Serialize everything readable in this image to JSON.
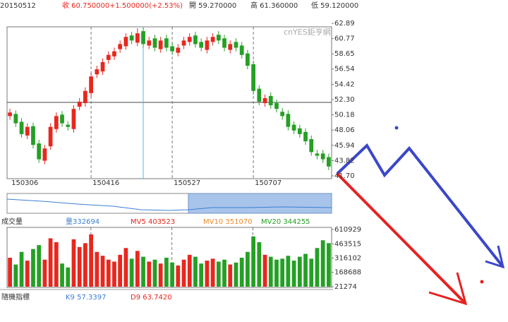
{
  "header": {
    "date": "20150512",
    "close": "收 60.750000",
    "change": "+1.500000(+2.53%)",
    "open": "開 59.270000",
    "high": "高 61.360000",
    "low": "低 59.120000"
  },
  "chart_data": [
    {
      "type": "candlestick",
      "watermark": "cnYES鉅亨網",
      "up_color": "#e8271e",
      "down_color": "#24a024",
      "categories": [
        "150306",
        null,
        null,
        null,
        null,
        null,
        null,
        null,
        null,
        null,
        null,
        null,
        null,
        null,
        "150416",
        null,
        null,
        null,
        null,
        null,
        null,
        null,
        null,
        null,
        null,
        null,
        null,
        null,
        "150527",
        null,
        null,
        null,
        null,
        null,
        null,
        null,
        null,
        null,
        null,
        null,
        null,
        null,
        "150707",
        null,
        null,
        null,
        null,
        null,
        null,
        null,
        null,
        null,
        null,
        null,
        null,
        null
      ],
      "open": [
        50.0,
        50.3,
        49.2,
        47.3,
        48.6,
        46.2,
        43.8,
        45.8,
        48.2,
        50.2,
        48.8,
        48.2,
        51.3,
        51.8,
        53.2,
        55.8,
        56.2,
        57.8,
        58.3,
        59.3,
        59.7,
        61.2,
        60.2,
        61.8,
        59.8,
        60.8,
        59.3,
        60.8,
        59.7,
        58.8,
        59.8,
        60.3,
        61.2,
        60.3,
        59.2,
        60.3,
        61.3,
        60.8,
        59.2,
        60.3,
        59.8,
        58.7,
        57.2,
        53.8,
        51.8,
        52.8,
        51.8,
        50.6,
        50.3,
        48.8,
        48.3,
        47.8,
        46.8,
        44.8,
        44.8,
        44.3
      ],
      "high": [
        51.0,
        50.8,
        49.7,
        49.0,
        49.1,
        46.7,
        46.0,
        49.0,
        50.5,
        50.7,
        49.3,
        51.5,
        52.5,
        54.0,
        56.0,
        57.0,
        58.0,
        59.0,
        59.5,
        60.5,
        61.5,
        61.7,
        62.2,
        62.3,
        61.0,
        61.3,
        61.0,
        61.3,
        60.2,
        60.0,
        61.0,
        61.5,
        61.7,
        60.8,
        61.0,
        61.5,
        61.8,
        61.3,
        60.5,
        60.8,
        60.3,
        59.2,
        57.7,
        54.3,
        53.0,
        53.3,
        52.3,
        51.1,
        50.8,
        49.3,
        48.8,
        48.3,
        47.3,
        45.3,
        45.3,
        44.8
      ],
      "low": [
        49.5,
        48.5,
        47.0,
        46.8,
        45.5,
        43.5,
        43.3,
        45.3,
        47.7,
        48.5,
        48.0,
        47.7,
        50.8,
        51.3,
        52.7,
        55.3,
        55.7,
        57.3,
        57.8,
        58.8,
        59.2,
        60.0,
        59.7,
        59.5,
        59.3,
        59.0,
        58.8,
        59.0,
        58.5,
        58.3,
        59.3,
        59.8,
        59.5,
        59.0,
        58.7,
        59.8,
        60.0,
        59.0,
        58.7,
        59.0,
        58.0,
        56.5,
        53.0,
        51.5,
        51.3,
        51.0,
        50.5,
        49.5,
        48.0,
        47.5,
        47.0,
        46.0,
        44.5,
        44.0,
        43.5,
        42.5
      ],
      "close": [
        50.5,
        49.0,
        47.5,
        48.5,
        46.0,
        44.0,
        45.5,
        48.5,
        50.0,
        49.0,
        48.5,
        51.0,
        52.0,
        53.5,
        55.5,
        56.5,
        57.5,
        58.5,
        59.0,
        60.0,
        61.0,
        60.5,
        61.5,
        60.0,
        60.5,
        59.5,
        60.5,
        59.5,
        59.0,
        59.5,
        60.5,
        61.0,
        60.0,
        59.5,
        60.5,
        61.0,
        60.5,
        59.5,
        60.0,
        59.5,
        58.5,
        57.0,
        53.5,
        52.0,
        52.5,
        51.5,
        51.0,
        50.0,
        48.5,
        48.0,
        47.5,
        46.5,
        45.0,
        44.5,
        44.0,
        43.0
      ],
      "ylim": [
        41.7,
        62.89
      ],
      "yticks": [
        {
          "value": 62.89,
          "label": "62.89"
        },
        {
          "value": 60.77,
          "label": "60.77"
        },
        {
          "value": 58.65,
          "label": "58.65"
        },
        {
          "value": 56.54,
          "label": "56.54"
        },
        {
          "value": 54.42,
          "label": "54.42"
        },
        {
          "value": 52.3,
          "label": "52.30"
        },
        {
          "value": 50.18,
          "label": "50.18"
        },
        {
          "value": 48.06,
          "label": "48.06"
        },
        {
          "value": 45.94,
          "label": "45.94"
        },
        {
          "value": 43.82,
          "label": "43.82"
        },
        {
          "value": 41.7,
          "label": "41.70"
        }
      ]
    },
    {
      "type": "bar",
      "title": "成交量",
      "legend": [
        {
          "text": "量332694",
          "color": "#3a7fd5"
        },
        {
          "text": "MV5 403523",
          "color": "#e8271e"
        },
        {
          "text": "MV10 351070",
          "color": "#f08a2a"
        },
        {
          "text": "MV20 344255",
          "color": "#24a024"
        }
      ],
      "values": [
        320000,
        250000,
        380000,
        290000,
        410000,
        450000,
        300000,
        520000,
        480000,
        260000,
        220000,
        510000,
        430000,
        470000,
        560000,
        380000,
        340000,
        300000,
        280000,
        350000,
        420000,
        310000,
        390000,
        330000,
        280000,
        300000,
        260000,
        320000,
        270000,
        240000,
        300000,
        350000,
        330000,
        260000,
        290000,
        310000,
        280000,
        300000,
        250000,
        270000,
        320000,
        380000,
        540000,
        480000,
        350000,
        330000,
        300000,
        310000,
        340000,
        290000,
        330000,
        360000,
        310000,
        420000,
        500000,
        470000
      ],
      "ylim": [
        21274,
        610929
      ],
      "yticks": [
        610929,
        463515,
        316102,
        168688,
        21274
      ]
    },
    {
      "type": "indicator",
      "title": "隨機指標",
      "legend": [
        {
          "text": "K9 57.3397",
          "color": "#3a7fd5"
        },
        {
          "text": "D9 63.7420",
          "color": "#e8271e"
        }
      ]
    }
  ]
}
